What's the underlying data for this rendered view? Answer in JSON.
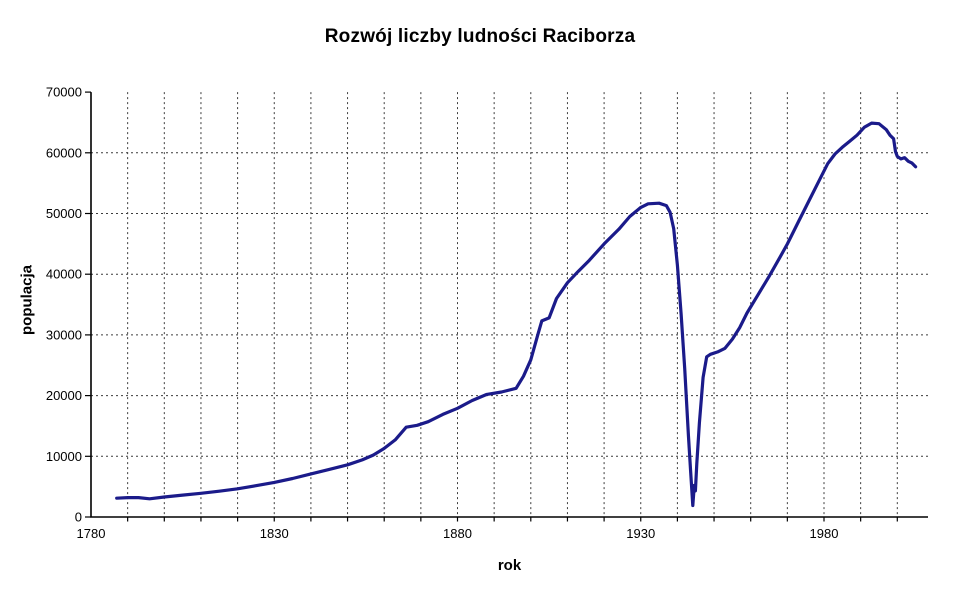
{
  "chart_data": {
    "type": "line",
    "title": "Rozwój liczby ludności Raciborza",
    "xlabel": "rok",
    "ylabel": "populacja",
    "x_range": [
      1780,
      2008
    ],
    "y_range": [
      0,
      70000
    ],
    "x_tick_labels": [
      1780,
      1830,
      1880,
      1930,
      1980
    ],
    "x_minor_tick_step_years": 10,
    "y_ticks": [
      0,
      10000,
      20000,
      30000,
      40000,
      50000,
      60000,
      70000
    ],
    "grid": {
      "visible": true,
      "style": "dashed",
      "x_step_years": 10,
      "y_step": 10000
    },
    "legend_position": "none",
    "line_color": "#1b1b8a",
    "series": [
      {
        "name": "populacja",
        "points": [
          [
            1787,
            3100
          ],
          [
            1790,
            3200
          ],
          [
            1793,
            3200
          ],
          [
            1796,
            3000
          ],
          [
            1800,
            3300
          ],
          [
            1805,
            3600
          ],
          [
            1810,
            3900
          ],
          [
            1815,
            4250
          ],
          [
            1820,
            4650
          ],
          [
            1825,
            5150
          ],
          [
            1830,
            5700
          ],
          [
            1835,
            6350
          ],
          [
            1840,
            7100
          ],
          [
            1845,
            7850
          ],
          [
            1850,
            8600
          ],
          [
            1854,
            9400
          ],
          [
            1857,
            10200
          ],
          [
            1860,
            11300
          ],
          [
            1863,
            12700
          ],
          [
            1866,
            14800
          ],
          [
            1869,
            15100
          ],
          [
            1872,
            15700
          ],
          [
            1876,
            16900
          ],
          [
            1880,
            17900
          ],
          [
            1884,
            19200
          ],
          [
            1888,
            20200
          ],
          [
            1892,
            20600
          ],
          [
            1896,
            21200
          ],
          [
            1898,
            23200
          ],
          [
            1900,
            25900
          ],
          [
            1902,
            30200
          ],
          [
            1903,
            32300
          ],
          [
            1905,
            32800
          ],
          [
            1907,
            36000
          ],
          [
            1910,
            38600
          ],
          [
            1913,
            40500
          ],
          [
            1916,
            42300
          ],
          [
            1920,
            45000
          ],
          [
            1924,
            47400
          ],
          [
            1927,
            49500
          ],
          [
            1930,
            51000
          ],
          [
            1932,
            51600
          ],
          [
            1935,
            51700
          ],
          [
            1937,
            51300
          ],
          [
            1938,
            50200
          ],
          [
            1939,
            47500
          ],
          [
            1940,
            41500
          ],
          [
            1941,
            33500
          ],
          [
            1942,
            24500
          ],
          [
            1943,
            13500
          ],
          [
            1943.6,
            7600
          ],
          [
            1944.2,
            1900
          ],
          [
            1944.6,
            5200
          ],
          [
            1944.9,
            4300
          ],
          [
            1945.3,
            8800
          ],
          [
            1946,
            15500
          ],
          [
            1947,
            23000
          ],
          [
            1948,
            26400
          ],
          [
            1949,
            26800
          ],
          [
            1951,
            27200
          ],
          [
            1953,
            27800
          ],
          [
            1955,
            29300
          ],
          [
            1957,
            31200
          ],
          [
            1959,
            33600
          ],
          [
            1962,
            36600
          ],
          [
            1965,
            39600
          ],
          [
            1968,
            42800
          ],
          [
            1970,
            45000
          ],
          [
            1973,
            48600
          ],
          [
            1976,
            52200
          ],
          [
            1979,
            55800
          ],
          [
            1981,
            58200
          ],
          [
            1983,
            59800
          ],
          [
            1985,
            60900
          ],
          [
            1987,
            61900
          ],
          [
            1989,
            62900
          ],
          [
            1991,
            64200
          ],
          [
            1993,
            64900
          ],
          [
            1995,
            64800
          ],
          [
            1997,
            63800
          ],
          [
            1998,
            62900
          ],
          [
            1999,
            62300
          ],
          [
            1999.5,
            60200
          ],
          [
            2000,
            59400
          ],
          [
            2001,
            59000
          ],
          [
            2002,
            59200
          ],
          [
            2003,
            58600
          ],
          [
            2004,
            58300
          ],
          [
            2005,
            57700
          ]
        ]
      }
    ]
  }
}
